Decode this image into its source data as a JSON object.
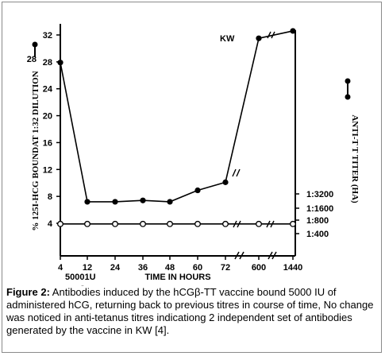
{
  "chart_data": {
    "type": "line",
    "x_categories": [
      "4",
      "12",
      "24",
      "36",
      "48",
      "60",
      "72",
      "600",
      "1440"
    ],
    "xlabel": "TIME IN HOURS",
    "ylabel_left": "% 125I-HCG BOUNDAT 1:32 DILUTION",
    "ylabel_right": "ANTI-T T TITER (HA)",
    "y_left_ticks": [
      "4",
      "8",
      "12",
      "16",
      "20",
      "24",
      "28",
      "32"
    ],
    "y_left_range": [
      4,
      32
    ],
    "y_right_ticks": [
      "1:400",
      "1:800",
      "1:1600",
      "1:3200"
    ],
    "annotation": "KW",
    "dose_label": "50001U",
    "dose_label_extra": "-",
    "left_axis_extra_label": "28",
    "series": [
      {
        "marker": "filled",
        "x": [
          "4",
          "12",
          "24",
          "36",
          "48",
          "60",
          "72",
          "600",
          "1440"
        ],
        "y": [
          27.9,
          7.2,
          7.2,
          7.4,
          7.2,
          8.9,
          10.1,
          31.5,
          32.6
        ]
      },
      {
        "marker": "open",
        "x": [
          "4",
          "12",
          "24",
          "36",
          "48",
          "60",
          "72",
          "600",
          "1440"
        ],
        "y": [
          3.9,
          3.9,
          3.9,
          3.9,
          3.9,
          3.9,
          3.9,
          3.9,
          3.9
        ]
      }
    ],
    "grid": false,
    "legend": "none"
  },
  "caption": {
    "label": "Figure 2:",
    "text": " Antibodies induced by the hCGβ-TT vaccine bound 5000 IU of administered hCG, returning back to previous titres in course of time, No change was noticed in anti-tetanus titres indicationg 2 independent set of antibodies generated by the vaccine in KW [4]."
  }
}
